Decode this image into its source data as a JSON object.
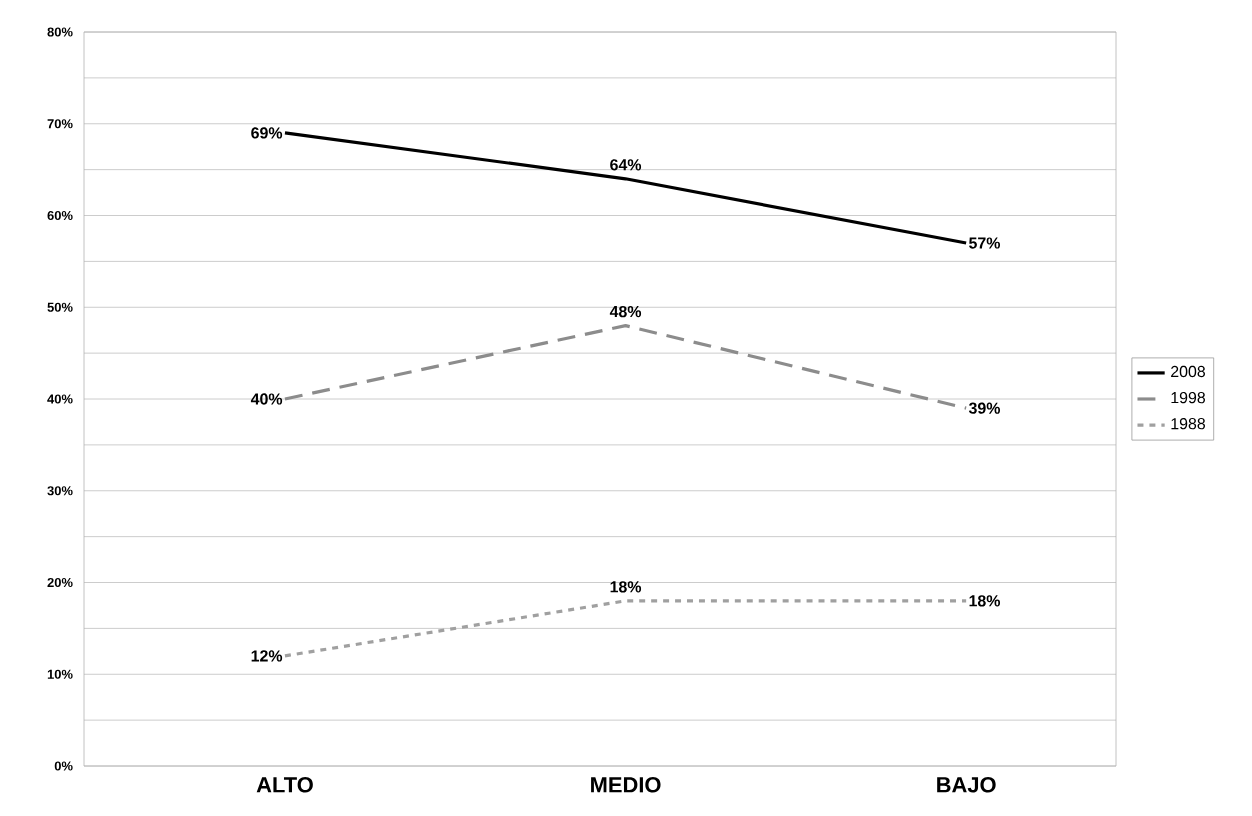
{
  "chart_data": {
    "type": "line",
    "categories": [
      "ALTO",
      "MEDIO",
      "BAJO"
    ],
    "series": [
      {
        "name": "2008",
        "color": "#000000",
        "values": [
          69,
          64,
          57
        ],
        "line_style": "solid",
        "value_labels": [
          "69%",
          "64%",
          "57%"
        ]
      },
      {
        "name": "1998",
        "color": "#8c8c8c",
        "values": [
          40,
          48,
          39
        ],
        "line_style": "dashed",
        "value_labels": [
          "40%",
          "48%",
          "39%"
        ]
      },
      {
        "name": "1988",
        "color": "#a0a0a0",
        "values": [
          12,
          18,
          18
        ],
        "line_style": "dotted",
        "value_labels": [
          "12%",
          "18%",
          "18%"
        ]
      }
    ],
    "ylim": [
      0,
      80
    ],
    "yticks": [
      {
        "value": 0,
        "label": "0%"
      },
      {
        "value": 5,
        "label": null
      },
      {
        "value": 10,
        "label": "10%"
      },
      {
        "value": 15,
        "label": null
      },
      {
        "value": 20,
        "label": "20%"
      },
      {
        "value": 25,
        "label": null
      },
      {
        "value": 30,
        "label": "30%"
      },
      {
        "value": 35,
        "label": null
      },
      {
        "value": 40,
        "label": "40%"
      },
      {
        "value": 45,
        "label": null
      },
      {
        "value": 50,
        "label": "50%"
      },
      {
        "value": 55,
        "label": null
      },
      {
        "value": 60,
        "label": "60%"
      },
      {
        "value": 65,
        "label": null
      },
      {
        "value": 70,
        "label": "70%"
      },
      {
        "value": 75,
        "label": null
      },
      {
        "value": 80,
        "label": "80%"
      }
    ],
    "grid": "y",
    "legend": "right"
  }
}
